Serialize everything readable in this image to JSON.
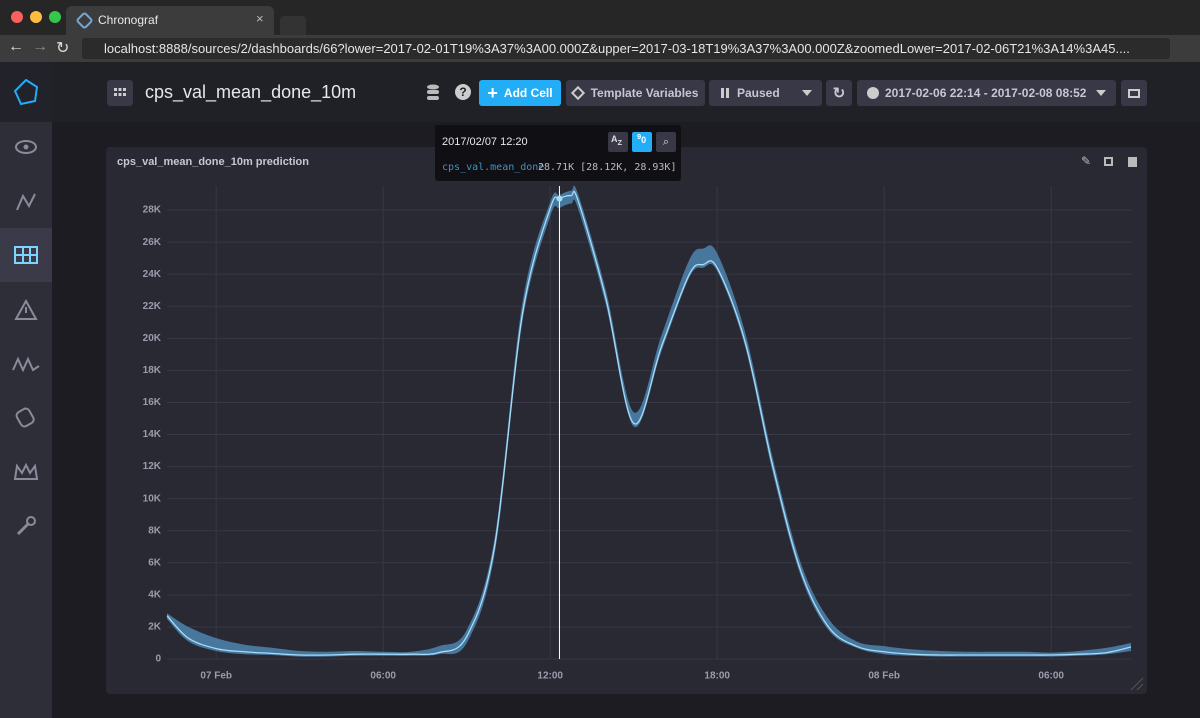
{
  "browser": {
    "tab_title": "Chronograf",
    "url": "localhost:8888/sources/2/dashboards/66?lower=2017-02-01T19%3A37%3A00.000Z&upper=2017-03-18T19%3A37%3A00.000Z&zoomedLower=2017-02-06T21%3A14%3A45...."
  },
  "header": {
    "title": "cps_val_mean_done_10m",
    "add_cell": "Add Cell",
    "template_variables": "Template Variables",
    "paused": "Paused",
    "time_range": "2017-02-06 22:14 - 2017-02-08 08:52"
  },
  "chart_data": {
    "type": "line",
    "title": "cps_val_mean_done_10m prediction",
    "x": [
      "2017-02-06T22:14",
      "2017-02-06T23:00",
      "2017-02-07T00:00",
      "2017-02-07T01:00",
      "2017-02-07T02:00",
      "2017-02-07T03:00",
      "2017-02-07T04:00",
      "2017-02-07T05:00",
      "2017-02-07T06:00",
      "2017-02-07T07:00",
      "2017-02-07T08:00",
      "2017-02-07T09:00",
      "2017-02-07T10:00",
      "2017-02-07T11:00",
      "2017-02-07T12:00",
      "2017-02-07T12:20",
      "2017-02-07T12:45",
      "2017-02-07T13:00",
      "2017-02-07T14:00",
      "2017-02-07T15:00",
      "2017-02-07T16:00",
      "2017-02-07T17:00",
      "2017-02-07T17:30",
      "2017-02-07T18:00",
      "2017-02-07T19:00",
      "2017-02-07T20:00",
      "2017-02-07T21:00",
      "2017-02-07T22:00",
      "2017-02-07T23:00",
      "2017-02-08T00:00",
      "2017-02-08T01:00",
      "2017-02-08T02:00",
      "2017-02-08T03:00",
      "2017-02-08T04:00",
      "2017-02-08T05:00",
      "2017-02-08T06:00",
      "2017-02-08T07:00",
      "2017-02-08T08:00",
      "2017-02-08T08:52"
    ],
    "series": [
      {
        "name": "cps_val.mean_done",
        "color": "#a6dcf8",
        "values": [
          2700,
          1300,
          650,
          450,
          350,
          250,
          250,
          300,
          300,
          300,
          400,
          1400,
          7000,
          21500,
          28100,
          28710,
          28900,
          28600,
          22500,
          14700,
          19500,
          24000,
          24600,
          24400,
          19800,
          12000,
          5500,
          2000,
          800,
          450,
          300,
          250,
          250,
          250,
          250,
          250,
          300,
          400,
          750
        ]
      }
    ],
    "band": {
      "color": "#4b7fa8",
      "lower": [
        2500,
        1100,
        500,
        300,
        250,
        150,
        150,
        200,
        200,
        200,
        300,
        1000,
        6500,
        21000,
        27600,
        28120,
        28400,
        28100,
        22100,
        14500,
        19200,
        23800,
        24400,
        24200,
        19500,
        11600,
        5200,
        1800,
        700,
        300,
        200,
        150,
        150,
        150,
        150,
        150,
        200,
        300,
        500
      ],
      "upper": [
        2850,
        2000,
        1300,
        900,
        700,
        500,
        450,
        500,
        450,
        450,
        800,
        1800,
        7500,
        22200,
        28500,
        28930,
        29200,
        29000,
        23000,
        15400,
        20200,
        24900,
        25600,
        25300,
        20400,
        12500,
        6000,
        2500,
        1100,
        800,
        600,
        500,
        450,
        450,
        450,
        400,
        500,
        700,
        1000
      ]
    },
    "xlim": [
      "2017-02-06T22:14",
      "2017-02-08T08:52"
    ],
    "xticks": [
      {
        "value": "2017-02-07T00:00",
        "label": "07 Feb"
      },
      {
        "value": "2017-02-07T06:00",
        "label": "06:00"
      },
      {
        "value": "2017-02-07T12:00",
        "label": "12:00"
      },
      {
        "value": "2017-02-07T18:00",
        "label": "18:00"
      },
      {
        "value": "2017-02-08T00:00",
        "label": "08 Feb"
      },
      {
        "value": "2017-02-08T06:00",
        "label": "06:00"
      }
    ],
    "ylim": [
      0,
      29500
    ],
    "yticks": [
      0,
      {
        "value": 2000,
        "label": "2K"
      },
      {
        "value": 4000,
        "label": "4K"
      },
      {
        "value": 6000,
        "label": "6K"
      },
      {
        "value": 8000,
        "label": "8K"
      },
      {
        "value": 10000,
        "label": "10K"
      },
      {
        "value": 12000,
        "label": "12K"
      },
      {
        "value": 14000,
        "label": "14K"
      },
      {
        "value": 16000,
        "label": "16K"
      },
      {
        "value": 18000,
        "label": "18K"
      },
      {
        "value": 20000,
        "label": "20K"
      },
      {
        "value": 22000,
        "label": "22K"
      },
      {
        "value": 24000,
        "label": "24K"
      },
      {
        "value": 26000,
        "label": "26K"
      },
      {
        "value": 28000,
        "label": "28K"
      }
    ],
    "grid": true,
    "hover": {
      "time_label": "2017/02/07 12:20",
      "x": "2017-02-07T12:20",
      "value": 28710,
      "series_label": "cps_val.mean_done",
      "value_label": "28.71K [28.12K, 28.93K]"
    }
  }
}
